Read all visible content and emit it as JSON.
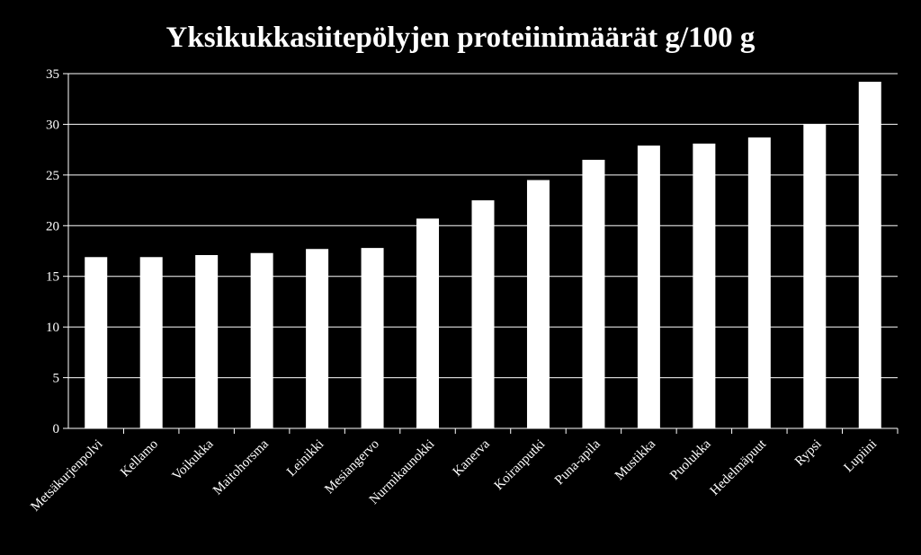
{
  "chart_data": {
    "type": "bar",
    "title": "Yksikukkasiitepölyjen proteiinimäärät g/100 g",
    "xlabel": "",
    "ylabel": "",
    "categories": [
      "Metsäkurjenpolvi",
      "Kellamo",
      "Voikukka",
      "Maitohorsma",
      "Leinikki",
      "Mesiangervo",
      "Nurmikaunokki",
      "Kanerva",
      "Koiranputki",
      "Puna-apila",
      "Mustikka",
      "Puolukka",
      "Hedelmäpuut",
      "Rypsi",
      "Lupiini"
    ],
    "values": [
      16.9,
      16.9,
      17.1,
      17.3,
      17.7,
      17.8,
      20.7,
      22.5,
      24.5,
      26.5,
      27.9,
      28.1,
      28.7,
      30.0,
      34.2
    ],
    "ylim": [
      0,
      35
    ],
    "yticks": [
      "0",
      "5",
      "10",
      "15",
      "20",
      "25",
      "30",
      "35"
    ],
    "grid": true,
    "legend": "none",
    "colors": {
      "background": "#000000",
      "bar": "#ffffff",
      "axis": "#ffffff",
      "grid": "#ffffff",
      "text": "#ffffff"
    }
  }
}
